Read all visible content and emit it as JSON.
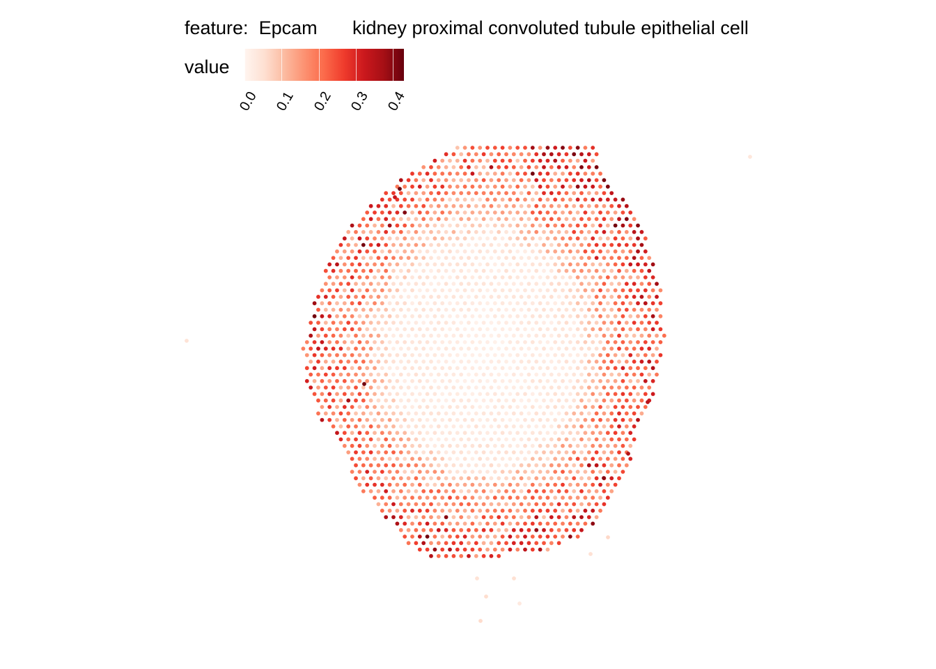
{
  "legend": {
    "feature_label": "feature:  Epcam",
    "cell_type_label": "kidney proximal convoluted tubule epithelial cell",
    "value_label": "value",
    "scale_ticks": [
      "0.0",
      "0.1",
      "0.2",
      "0.3",
      "0.4"
    ]
  },
  "colors": {
    "low": "#fff5f0",
    "high": "#67000d",
    "palette": [
      "#fff5f0",
      "#fee0d2",
      "#fcbba1",
      "#fc9272",
      "#fb6a4a",
      "#ef3b2c",
      "#cb181d",
      "#a50f15",
      "#67000d"
    ]
  },
  "chart_data": {
    "type": "scatter",
    "title": "",
    "xlabel": "",
    "ylabel": "",
    "color_variable": "value",
    "color_range": [
      0.0,
      0.43
    ],
    "grid": false,
    "legend_position": "top",
    "description_of_pattern": "spatial spot array; high Epcam values form a ring at the tissue periphery, low values in the center",
    "ring_profile": [
      {
        "region": "center",
        "value": 0.02
      },
      {
        "region": "inner",
        "value": 0.06
      },
      {
        "region": "mid",
        "value": 0.12
      },
      {
        "region": "outer",
        "value": 0.22
      },
      {
        "region": "edge",
        "value": 0.28
      }
    ],
    "max_spots": [
      {
        "region": "upper-left edge",
        "value": 0.43
      },
      {
        "region": "left edge",
        "value": 0.42
      },
      {
        "region": "lower-right edge",
        "value": 0.4
      }
    ]
  }
}
